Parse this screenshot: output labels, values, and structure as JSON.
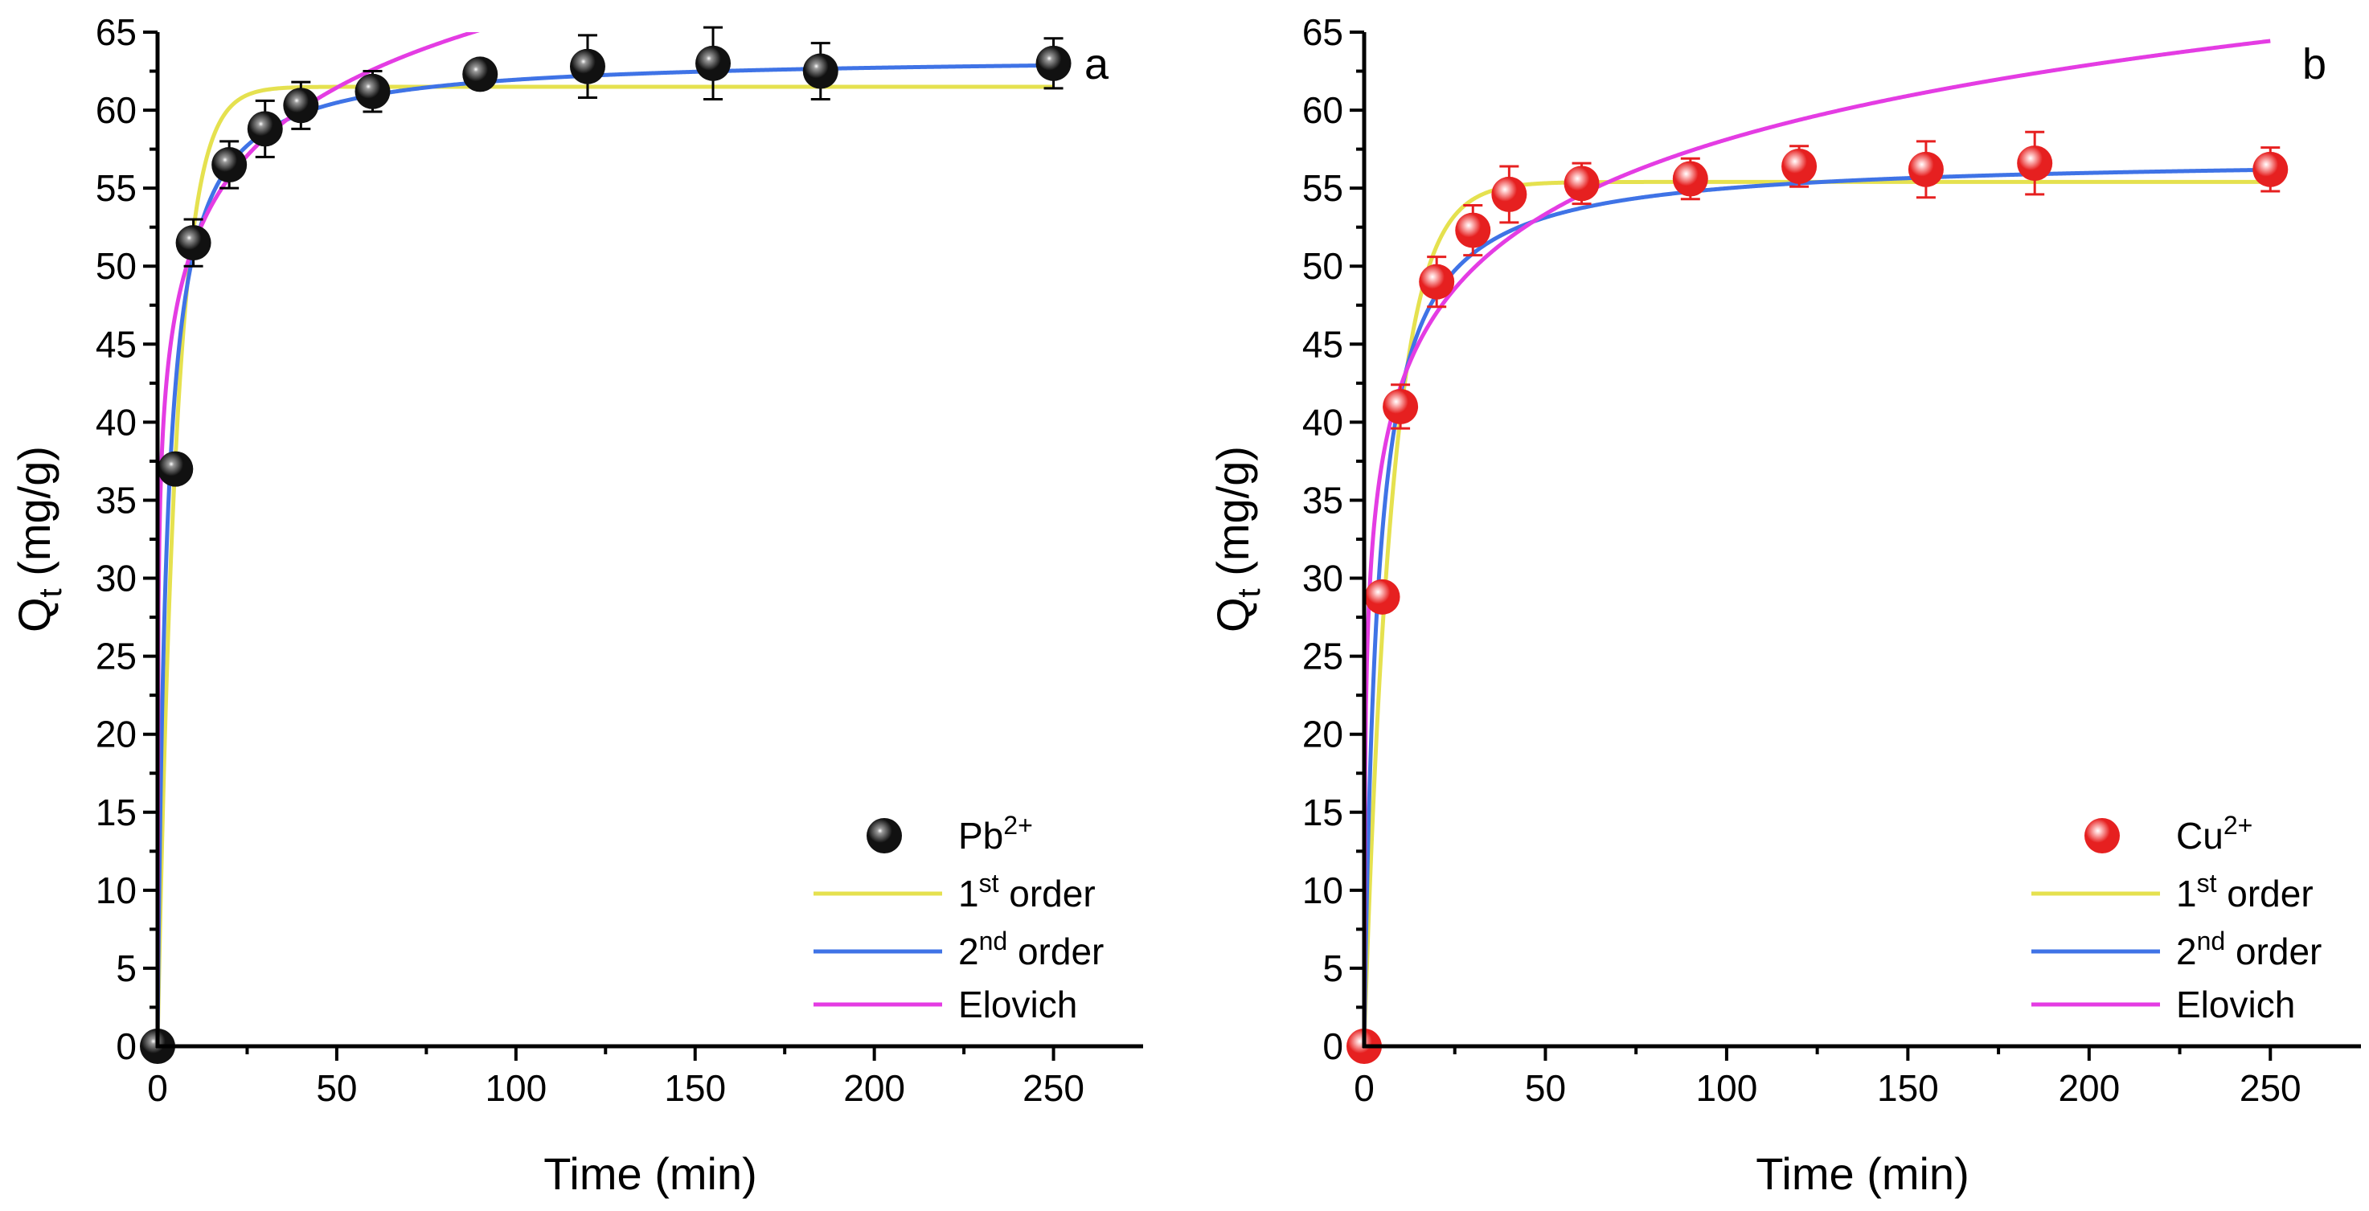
{
  "chart_data": [
    {
      "type": "scatter",
      "panel_letter": "a",
      "xlabel": "Time (min)",
      "ylabel_main": "Q",
      "ylabel_sub": "t",
      "ylabel_unit": " (mg/g)",
      "xlim": [
        0,
        275
      ],
      "ylim": [
        0,
        65
      ],
      "x_ticks": [
        0,
        50,
        100,
        150,
        200,
        250
      ],
      "y_ticks": [
        0,
        5,
        10,
        15,
        20,
        25,
        30,
        35,
        40,
        45,
        50,
        55,
        60,
        65
      ],
      "x_tick_labels": [
        "0",
        "50",
        "100",
        "150",
        "200",
        "250"
      ],
      "y_tick_labels": [
        "0",
        "5",
        "10",
        "15",
        "20",
        "25",
        "30",
        "35",
        "40",
        "45",
        "50",
        "55",
        "60",
        "65"
      ],
      "grid": false,
      "legend_position": "bottom-right",
      "series": [
        {
          "name": "Pb",
          "superscript": "2+",
          "kind": "points",
          "color": "#111111",
          "highlight": "#9a9a9a",
          "x": [
            0,
            5,
            10,
            20,
            30,
            40,
            60,
            90,
            120,
            155,
            185,
            250
          ],
          "y": [
            0,
            37.0,
            51.5,
            56.5,
            58.8,
            60.3,
            61.2,
            62.3,
            62.8,
            63.0,
            62.5,
            63.0
          ],
          "err": [
            0,
            0.8,
            1.5,
            1.5,
            1.8,
            1.5,
            1.3,
            0.8,
            2.0,
            2.3,
            1.8,
            1.6
          ]
        },
        {
          "name": "1",
          "superscript": "st",
          "name_suffix": " order",
          "kind": "line",
          "color": "#e5e14f",
          "model": "pfo",
          "params": {
            "qe": 61.5,
            "k1": 0.19
          }
        },
        {
          "name": "2",
          "superscript": "nd",
          "name_suffix": " order",
          "kind": "line",
          "color": "#3f73e6",
          "model": "pso",
          "params": {
            "qe": 63.5,
            "k2": 0.0063
          }
        },
        {
          "name": "Elovich",
          "superscript": "",
          "name_suffix": "",
          "kind": "line",
          "color": "#e43ce3",
          "model": "elovich",
          "params": {
            "alpha": 2200,
            "beta": 0.159
          }
        }
      ]
    },
    {
      "type": "scatter",
      "panel_letter": "b",
      "xlabel": "Time (min)",
      "ylabel_main": "Q",
      "ylabel_sub": "t",
      "ylabel_unit": " (mg/g)",
      "xlim": [
        0,
        275
      ],
      "ylim": [
        0,
        65
      ],
      "x_ticks": [
        0,
        50,
        100,
        150,
        200,
        250
      ],
      "y_ticks": [
        0,
        5,
        10,
        15,
        20,
        25,
        30,
        35,
        40,
        45,
        50,
        55,
        60,
        65
      ],
      "x_tick_labels": [
        "0",
        "50",
        "100",
        "150",
        "200",
        "250"
      ],
      "y_tick_labels": [
        "0",
        "5",
        "10",
        "15",
        "20",
        "25",
        "30",
        "35",
        "40",
        "45",
        "50",
        "55",
        "60",
        "65"
      ],
      "grid": false,
      "legend_position": "bottom-right",
      "series": [
        {
          "name": "Cu",
          "superscript": "2+",
          "kind": "points",
          "color": "#e62020",
          "highlight": "#ffd0d0",
          "x": [
            0,
            5,
            10,
            20,
            30,
            40,
            60,
            90,
            120,
            155,
            185,
            250
          ],
          "y": [
            0,
            28.8,
            41.0,
            49.0,
            52.3,
            54.6,
            55.3,
            55.6,
            56.4,
            56.2,
            56.6,
            56.2
          ],
          "err": [
            0,
            0.6,
            1.4,
            1.6,
            1.6,
            1.8,
            1.3,
            1.3,
            1.3,
            1.8,
            2.0,
            1.4
          ]
        },
        {
          "name": "1",
          "superscript": "st",
          "name_suffix": " order",
          "kind": "line",
          "color": "#e5e14f",
          "model": "pfo",
          "params": {
            "qe": 55.4,
            "k1": 0.13
          }
        },
        {
          "name": "2",
          "superscript": "nd",
          "name_suffix": " order",
          "kind": "line",
          "color": "#3f73e6",
          "model": "pso",
          "params": {
            "qe": 57.0,
            "k2": 0.0048
          }
        },
        {
          "name": "Elovich",
          "superscript": "",
          "name_suffix": "",
          "kind": "line",
          "color": "#e43ce3",
          "model": "elovich",
          "params": {
            "alpha": 315,
            "beta": 0.145
          }
        }
      ]
    }
  ]
}
